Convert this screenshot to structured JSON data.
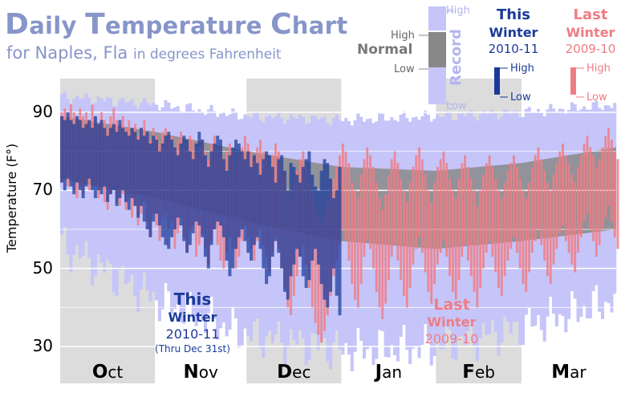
{
  "chart_data": {
    "type": "bar",
    "title": "Daily Temperature Chart",
    "subtitle_main": "for Naples, Fla",
    "subtitle_unit": "in degrees Fahrenheit",
    "ylabel": "Temperature (F°)",
    "ylim": [
      25,
      98
    ],
    "yticks": [
      "90",
      "70",
      "50",
      "30"
    ],
    "ytick_values": [
      90,
      70,
      50,
      30
    ],
    "months": [
      {
        "initial": "O",
        "rest": "ct",
        "days": 31
      },
      {
        "initial": "N",
        "rest": "ov",
        "days": 30
      },
      {
        "initial": "D",
        "rest": "ec",
        "days": 31
      },
      {
        "initial": "J",
        "rest": "an",
        "days": 31
      },
      {
        "initial": "F",
        "rest": "eb",
        "days": 28
      },
      {
        "initial": "M",
        "rest": "ar",
        "days": 31
      }
    ],
    "normal": {
      "label": "Normal",
      "high_label": "High",
      "low_label": "Low",
      "high_knots": [
        [
          0,
          89
        ],
        [
          31,
          85
        ],
        [
          61,
          80
        ],
        [
          92,
          76
        ],
        [
          123,
          75
        ],
        [
          151,
          77
        ],
        [
          182,
          81
        ]
      ],
      "low_knots": [
        [
          0,
          73
        ],
        [
          31,
          68
        ],
        [
          61,
          62
        ],
        [
          92,
          57
        ],
        [
          123,
          55
        ],
        [
          151,
          57
        ],
        [
          182,
          60
        ]
      ]
    },
    "record": {
      "label": "Record",
      "high_label": "High",
      "low_label": "Low",
      "high_knots": [
        [
          0,
          94
        ],
        [
          31,
          92
        ],
        [
          61,
          89
        ],
        [
          92,
          88
        ],
        [
          123,
          89
        ],
        [
          151,
          90
        ],
        [
          182,
          92
        ]
      ],
      "low_knots": [
        [
          0,
          56
        ],
        [
          31,
          42
        ],
        [
          61,
          33
        ],
        [
          92,
          29
        ],
        [
          123,
          30
        ],
        [
          151,
          35
        ],
        [
          182,
          42
        ]
      ]
    },
    "series": [
      {
        "name": "This Winter",
        "legend_line1": "This",
        "legend_line2": "Winter",
        "legend_years": "2010-11",
        "annot_line1": "This",
        "annot_line2": "Winter",
        "annot_years": "2010-11",
        "annot_note": "(Thru Dec 31st)",
        "high_label": "High",
        "low_label": "Low",
        "start_day": 0,
        "highs": [
          89,
          88,
          90,
          88,
          87,
          89,
          88,
          86,
          87,
          88,
          86,
          89,
          87,
          88,
          86,
          84,
          86,
          87,
          85,
          88,
          86,
          85,
          84,
          86,
          85,
          83,
          86,
          84,
          85,
          82,
          84,
          83,
          80,
          82,
          84,
          85,
          83,
          81,
          79,
          82,
          84,
          83,
          80,
          78,
          82,
          85,
          83,
          79,
          76,
          80,
          82,
          84,
          83,
          78,
          75,
          79,
          81,
          83,
          82,
          80,
          78,
          80,
          76,
          79,
          77,
          74,
          78,
          80,
          79,
          76,
          72,
          78,
          79,
          75,
          70,
          77,
          76,
          74,
          72,
          76,
          78,
          80,
          74,
          71,
          70,
          75,
          78,
          77,
          73,
          68,
          70,
          76
        ],
        "lows": [
          72,
          70,
          73,
          71,
          69,
          72,
          70,
          68,
          71,
          73,
          70,
          68,
          70,
          69,
          71,
          67,
          69,
          70,
          66,
          68,
          70,
          67,
          65,
          68,
          66,
          63,
          66,
          62,
          60,
          58,
          62,
          64,
          61,
          58,
          56,
          55,
          58,
          60,
          63,
          61,
          57,
          54,
          56,
          59,
          62,
          61,
          58,
          53,
          50,
          56,
          60,
          62,
          61,
          58,
          52,
          48,
          50,
          55,
          58,
          60,
          57,
          54,
          52,
          56,
          58,
          55,
          50,
          46,
          48,
          53,
          57,
          54,
          50,
          44,
          42,
          48,
          51,
          55,
          53,
          48,
          45,
          47,
          52,
          55,
          51,
          46,
          42,
          40,
          44,
          50,
          43,
          38
        ]
      },
      {
        "name": "Last Winter",
        "legend_line1": "Last",
        "legend_line2": "Winter",
        "legend_years": "2009-10",
        "annot_line1": "Last",
        "annot_line2": "Winter",
        "annot_years": "2009-10",
        "high_label": "High",
        "low_label": "Low",
        "start_day": 0,
        "highs": [
          90,
          91,
          89,
          92,
          90,
          88,
          91,
          89,
          90,
          88,
          92,
          89,
          87,
          90,
          88,
          86,
          89,
          91,
          88,
          87,
          89,
          86,
          88,
          85,
          87,
          84,
          86,
          88,
          85,
          83,
          86,
          84,
          82,
          85,
          86,
          83,
          84,
          81,
          83,
          85,
          82,
          80,
          84,
          83,
          79,
          81,
          83,
          80,
          78,
          82,
          84,
          81,
          79,
          78,
          80,
          82,
          80,
          77,
          79,
          81,
          84,
          82,
          80,
          78,
          81,
          83,
          80,
          78,
          76,
          79,
          82,
          80,
          77,
          74,
          70,
          68,
          72,
          75,
          78,
          80,
          76,
          72,
          69,
          66,
          64,
          62,
          64,
          67,
          70,
          73,
          76,
          79,
          82,
          80,
          77,
          72,
          70,
          68,
          74,
          78,
          81,
          79,
          76,
          72,
          68,
          65,
          69,
          74,
          78,
          80,
          77,
          73,
          70,
          67,
          72,
          76,
          79,
          81,
          78,
          74,
          70,
          67,
          72,
          76,
          78,
          80,
          77,
          73,
          70,
          68,
          73,
          77,
          79,
          76,
          73,
          70,
          66,
          70,
          74,
          77,
          79,
          76,
          73,
          70,
          68,
          72,
          75,
          77,
          79,
          76,
          73,
          70,
          68,
          72,
          76,
          79,
          81,
          78,
          75,
          72,
          70,
          74,
          77,
          80,
          82,
          79,
          77,
          74,
          72,
          76,
          79,
          82,
          84,
          81,
          79,
          76,
          78,
          81,
          84,
          86,
          83,
          80,
          78
        ],
        "lows": [
          72,
          74,
          71,
          73,
          70,
          68,
          71,
          69,
          72,
          70,
          73,
          71,
          68,
          70,
          67,
          65,
          69,
          71,
          67,
          66,
          69,
          65,
          68,
          63,
          66,
          61,
          64,
          67,
          62,
          58,
          64,
          61,
          57,
          63,
          64,
          60,
          62,
          55,
          59,
          63,
          58,
          54,
          60,
          61,
          53,
          56,
          59,
          55,
          51,
          57,
          60,
          56,
          52,
          50,
          54,
          58,
          55,
          50,
          53,
          57,
          61,
          58,
          55,
          52,
          57,
          60,
          56,
          53,
          49,
          54,
          58,
          55,
          50,
          45,
          40,
          38,
          43,
          48,
          53,
          56,
          51,
          45,
          40,
          36,
          33,
          31,
          34,
          38,
          43,
          48,
          52,
          56,
          60,
          57,
          52,
          46,
          42,
          40,
          46,
          53,
          57,
          55,
          50,
          44,
          40,
          37,
          41,
          47,
          53,
          56,
          52,
          47,
          43,
          40,
          45,
          51,
          55,
          58,
          54,
          49,
          44,
          41,
          46,
          51,
          54,
          57,
          53,
          48,
          44,
          42,
          47,
          53,
          56,
          52,
          48,
          44,
          40,
          45,
          50,
          54,
          57,
          53,
          49,
          45,
          43,
          48,
          52,
          55,
          58,
          54,
          50,
          46,
          44,
          49,
          54,
          57,
          60,
          56,
          52,
          48,
          46,
          51,
          55,
          59,
          61,
          57,
          54,
          51,
          49,
          54,
          58,
          62,
          64,
          60,
          57,
          53,
          56,
          60,
          63,
          66,
          62,
          58,
          55
        ]
      }
    ],
    "colors": {
      "title": "#8795c9",
      "record": "#c5c5fa",
      "normal": "#888888",
      "this_winter": "#1a3a9a",
      "last_winter": "#f07c84",
      "alt_month_bg": "#dcdcdc",
      "grid": "#ffffff"
    }
  }
}
